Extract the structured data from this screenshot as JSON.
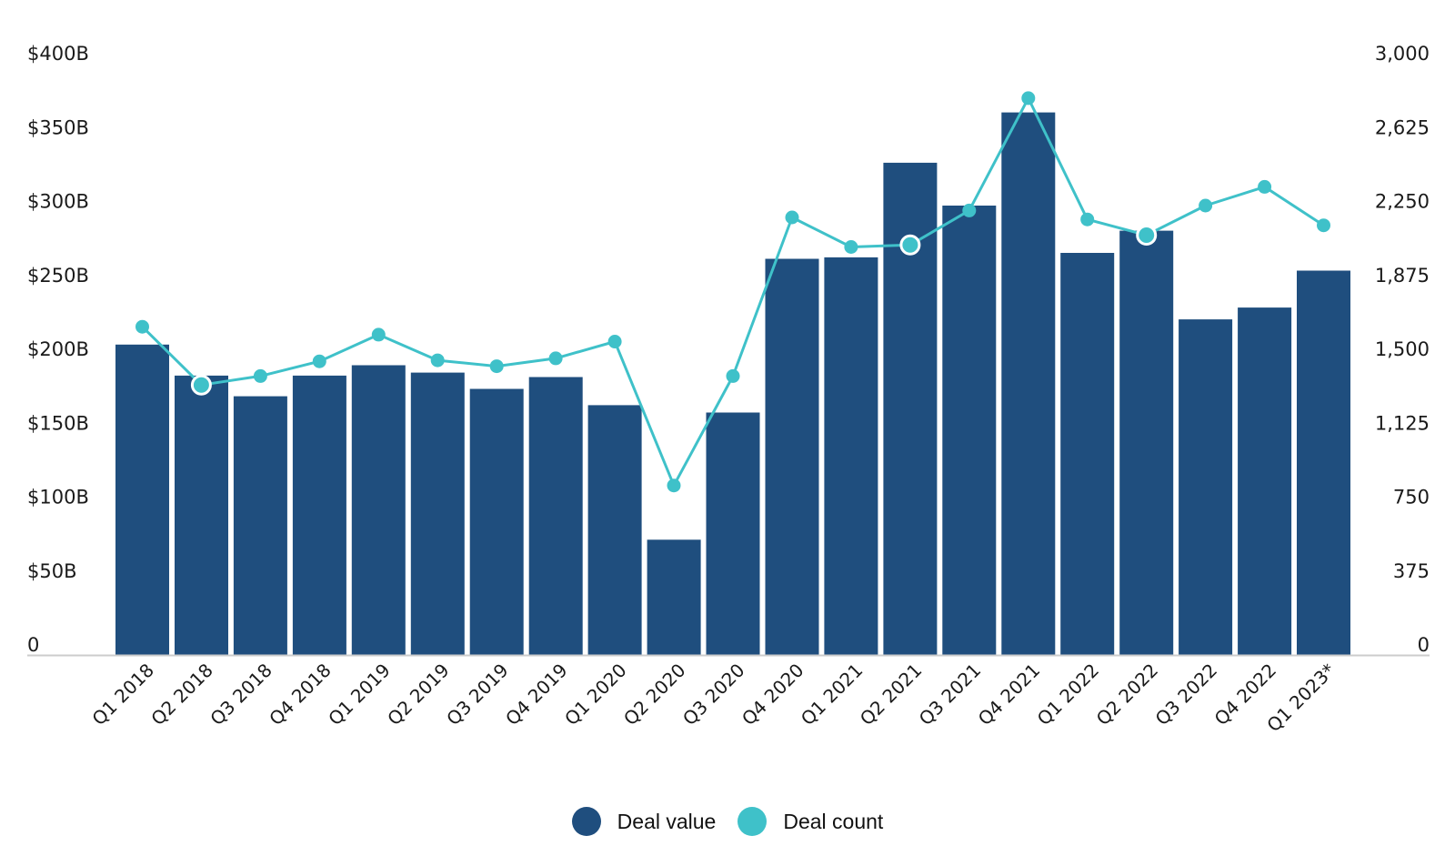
{
  "colors": {
    "deal_value": "#1f4e7e",
    "deal_count": "#3fc1c9",
    "axis": "#cccccc",
    "text": "#1a1a1a"
  },
  "legend": {
    "deal_value_label": "Deal value",
    "deal_count_label": "Deal count"
  },
  "chart_data": {
    "type": "bar",
    "title": "",
    "xlabel": "",
    "categories": [
      "Q1 2018",
      "Q2 2018",
      "Q3 2018",
      "Q4 2018",
      "Q1 2019",
      "Q2 2019",
      "Q3 2019",
      "Q4 2019",
      "Q1 2020",
      "Q2 2020",
      "Q3 2020",
      "Q4 2020",
      "Q1 2021",
      "Q2 2021",
      "Q3 2021",
      "Q4 2021",
      "Q1 2022",
      "Q2 2022",
      "Q3 2022",
      "Q4 2022",
      "Q1 2023*"
    ],
    "series": [
      {
        "name": "Deal value",
        "type": "bar",
        "axis": "left",
        "values": [
          210,
          189,
          175,
          189,
          196,
          191,
          180,
          188,
          169,
          78,
          164,
          268,
          269,
          333,
          304,
          367,
          272,
          287,
          227,
          235,
          260
        ]
      },
      {
        "name": "Deal count",
        "type": "line",
        "axis": "right",
        "values": [
          1665,
          1370,
          1415,
          1490,
          1625,
          1495,
          1465,
          1505,
          1590,
          860,
          1415,
          2220,
          2070,
          2080,
          2255,
          2825,
          2210,
          2130,
          2280,
          2375,
          2180
        ],
        "highlighted": [
          1,
          13,
          17
        ]
      }
    ],
    "y_left": {
      "ylim": [
        0,
        400
      ],
      "ticks": [
        0,
        50,
        100,
        150,
        200,
        250,
        300,
        350,
        400
      ],
      "tick_labels": [
        "0",
        "$50B",
        "$100B",
        "$150B",
        "$200B",
        "$250B",
        "$300B",
        "$350B",
        "$400B"
      ]
    },
    "y_right": {
      "ylim": [
        0,
        3000
      ],
      "ticks": [
        0,
        375,
        750,
        1125,
        1500,
        1875,
        2250,
        2625,
        3000
      ],
      "tick_labels": [
        "0",
        "375",
        "750",
        "1,125",
        "1,500",
        "1,875",
        "2,250",
        "2,625",
        "3,000"
      ]
    },
    "grid": false,
    "legend_position": "bottom-center"
  }
}
